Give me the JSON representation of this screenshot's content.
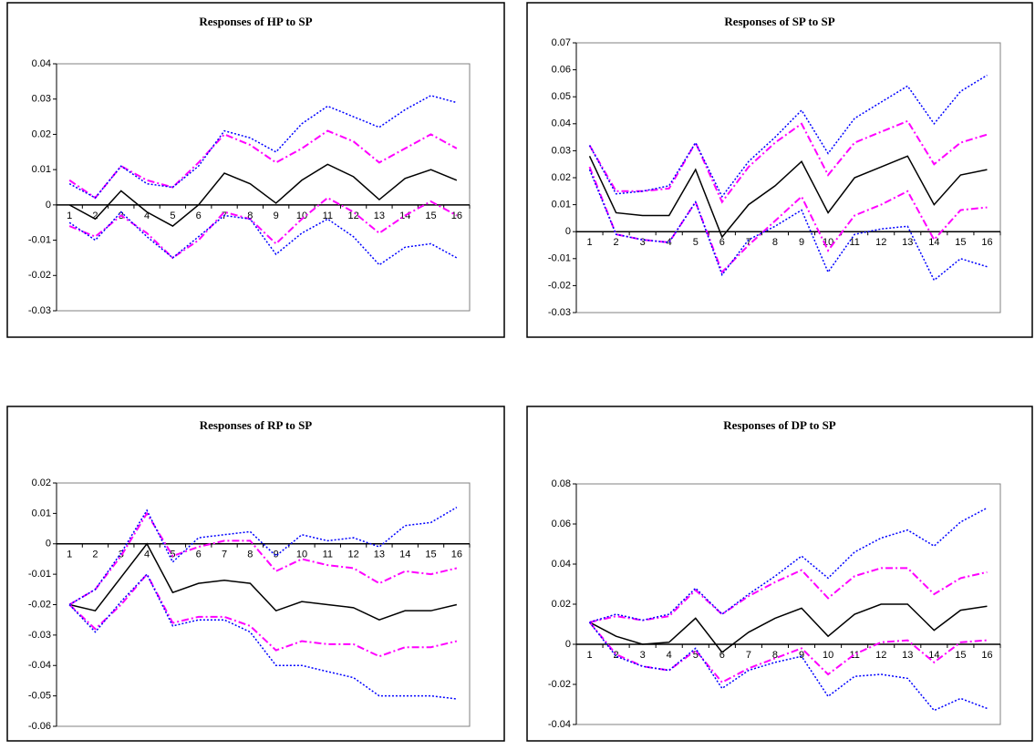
{
  "chart_data": [
    {
      "type": "line",
      "title": "Responses of HP to SP",
      "categories": [
        "1",
        "2",
        "3",
        "4",
        "5",
        "6",
        "7",
        "8",
        "9",
        "10",
        "11",
        "12",
        "13",
        "14",
        "15",
        "16"
      ],
      "ylim": [
        -0.03,
        0.04
      ],
      "yticks": [
        -0.03,
        -0.02,
        -0.01,
        0,
        0.01,
        0.02,
        0.03,
        0.04
      ],
      "series": [
        {
          "color": "#000000",
          "style": "solid",
          "values": [
            0,
            -0.004,
            0.004,
            -0.002,
            -0.006,
            0,
            0.009,
            0.006,
            0.0005,
            0.007,
            0.0115,
            0.008,
            0.0015,
            0.0075,
            0.01,
            0.007
          ]
        },
        {
          "color": "#ff00ff",
          "style": "dashdot",
          "values": [
            0.007,
            0.002,
            0.011,
            0.007,
            0.005,
            0.012,
            0.02,
            0.017,
            0.012,
            0.016,
            0.021,
            0.018,
            0.012,
            0.016,
            0.02,
            0.016
          ]
        },
        {
          "color": "#0000ff",
          "style": "dotted",
          "values": [
            0.006,
            0.002,
            0.011,
            0.006,
            0.005,
            0.011,
            0.021,
            0.019,
            0.015,
            0.023,
            0.028,
            0.025,
            0.022,
            0.027,
            0.031,
            0.029
          ]
        },
        {
          "color": "#ff00ff",
          "style": "dashdot",
          "values": [
            -0.006,
            -0.009,
            -0.003,
            -0.008,
            -0.015,
            -0.01,
            -0.002,
            -0.004,
            -0.011,
            -0.004,
            0.002,
            -0.002,
            -0.008,
            -0.003,
            0.001,
            -0.003
          ]
        },
        {
          "color": "#0000ff",
          "style": "dotted",
          "values": [
            -0.005,
            -0.01,
            -0.002,
            -0.009,
            -0.015,
            -0.009,
            -0.003,
            -0.004,
            -0.014,
            -0.008,
            -0.004,
            -0.009,
            -0.017,
            -0.012,
            -0.011,
            -0.015
          ]
        }
      ]
    },
    {
      "type": "line",
      "title": "Responses of SP to SP",
      "categories": [
        "1",
        "2",
        "3",
        "4",
        "5",
        "6",
        "7",
        "8",
        "9",
        "10",
        "11",
        "12",
        "13",
        "14",
        "15",
        "16"
      ],
      "ylim": [
        -0.03,
        0.07
      ],
      "yticks": [
        -0.03,
        -0.02,
        -0.01,
        0,
        0.01,
        0.02,
        0.03,
        0.04,
        0.05,
        0.06,
        0.07
      ],
      "series": [
        {
          "color": "#000000",
          "style": "solid",
          "values": [
            0.028,
            0.007,
            0.006,
            0.006,
            0.023,
            -0.002,
            0.01,
            0.017,
            0.026,
            0.007,
            0.02,
            0.024,
            0.028,
            0.01,
            0.021,
            0.023
          ]
        },
        {
          "color": "#ff00ff",
          "style": "dashdot",
          "values": [
            0.032,
            0.015,
            0.015,
            0.016,
            0.033,
            0.011,
            0.024,
            0.033,
            0.04,
            0.021,
            0.033,
            0.037,
            0.041,
            0.025,
            0.033,
            0.036
          ]
        },
        {
          "color": "#0000ff",
          "style": "dotted",
          "values": [
            0.032,
            0.014,
            0.015,
            0.017,
            0.033,
            0.013,
            0.026,
            0.035,
            0.045,
            0.029,
            0.042,
            0.048,
            0.054,
            0.04,
            0.052,
            0.058
          ]
        },
        {
          "color": "#ff00ff",
          "style": "dashdot",
          "values": [
            0.024,
            -0.001,
            -0.003,
            -0.004,
            0.011,
            -0.015,
            -0.005,
            0.004,
            0.013,
            -0.007,
            0.006,
            0.01,
            0.015,
            -0.003,
            0.008,
            0.009
          ]
        },
        {
          "color": "#0000ff",
          "style": "dotted",
          "values": [
            0.023,
            -0.001,
            -0.003,
            -0.004,
            0.011,
            -0.016,
            -0.003,
            0.002,
            0.008,
            -0.015,
            -0.001,
            0.001,
            0.002,
            -0.018,
            -0.01,
            -0.013
          ]
        }
      ]
    },
    {
      "type": "line",
      "title": "Responses of RP to SP",
      "categories": [
        "1",
        "2",
        "3",
        "4",
        "5",
        "6",
        "7",
        "8",
        "9",
        "10",
        "11",
        "12",
        "13",
        "14",
        "15",
        "16"
      ],
      "ylim": [
        -0.06,
        0.02
      ],
      "yticks": [
        -0.06,
        -0.05,
        -0.04,
        -0.03,
        -0.02,
        -0.01,
        0,
        0.01,
        0.02
      ],
      "series": [
        {
          "color": "#000000",
          "style": "solid",
          "values": [
            -0.02,
            -0.022,
            -0.011,
            0,
            -0.016,
            -0.013,
            -0.012,
            -0.013,
            -0.022,
            -0.019,
            -0.02,
            -0.021,
            -0.025,
            -0.022,
            -0.022,
            -0.02
          ]
        },
        {
          "color": "#ff00ff",
          "style": "dashdot",
          "values": [
            -0.02,
            -0.015,
            -0.004,
            0.01,
            -0.004,
            -0.001,
            0.001,
            0.001,
            -0.009,
            -0.005,
            -0.007,
            -0.008,
            -0.013,
            -0.009,
            -0.01,
            -0.008
          ]
        },
        {
          "color": "#0000ff",
          "style": "dotted",
          "values": [
            -0.02,
            -0.015,
            -0.003,
            0.011,
            -0.006,
            0.002,
            0.003,
            0.004,
            -0.004,
            0.003,
            0.001,
            0.002,
            -0.001,
            0.006,
            0.007,
            0.012
          ]
        },
        {
          "color": "#ff00ff",
          "style": "dashdot",
          "values": [
            -0.02,
            -0.028,
            -0.02,
            -0.01,
            -0.026,
            -0.024,
            -0.024,
            -0.027,
            -0.035,
            -0.032,
            -0.033,
            -0.033,
            -0.037,
            -0.034,
            -0.034,
            -0.032
          ]
        },
        {
          "color": "#0000ff",
          "style": "dotted",
          "values": [
            -0.02,
            -0.029,
            -0.019,
            -0.01,
            -0.027,
            -0.025,
            -0.025,
            -0.029,
            -0.04,
            -0.04,
            -0.042,
            -0.044,
            -0.05,
            -0.05,
            -0.05,
            -0.051
          ]
        }
      ]
    },
    {
      "type": "line",
      "title": "Responses of DP to SP",
      "categories": [
        "1",
        "2",
        "3",
        "4",
        "5",
        "6",
        "7",
        "8",
        "9",
        "10",
        "11",
        "12",
        "13",
        "14",
        "15",
        "16"
      ],
      "ylim": [
        -0.04,
        0.08
      ],
      "yticks": [
        -0.04,
        -0.02,
        0,
        0.02,
        0.04,
        0.06,
        0.08
      ],
      "series": [
        {
          "color": "#000000",
          "style": "solid",
          "values": [
            0.011,
            0.004,
            0,
            0.001,
            0.013,
            -0.004,
            0.006,
            0.013,
            0.018,
            0.004,
            0.015,
            0.02,
            0.02,
            0.007,
            0.017,
            0.019
          ]
        },
        {
          "color": "#ff00ff",
          "style": "dashdot",
          "values": [
            0.011,
            0.014,
            0.012,
            0.014,
            0.027,
            0.015,
            0.024,
            0.031,
            0.037,
            0.023,
            0.034,
            0.038,
            0.038,
            0.025,
            0.033,
            0.036
          ]
        },
        {
          "color": "#0000ff",
          "style": "dotted",
          "values": [
            0.011,
            0.015,
            0.012,
            0.015,
            0.028,
            0.015,
            0.025,
            0.034,
            0.044,
            0.033,
            0.046,
            0.053,
            0.057,
            0.049,
            0.061,
            0.068
          ]
        },
        {
          "color": "#ff00ff",
          "style": "dashdot",
          "values": [
            0.011,
            -0.005,
            -0.011,
            -0.013,
            -0.003,
            -0.019,
            -0.012,
            -0.007,
            -0.002,
            -0.015,
            -0.005,
            0.001,
            0.002,
            -0.009,
            0.001,
            0.002
          ]
        },
        {
          "color": "#0000ff",
          "style": "dotted",
          "values": [
            0.011,
            -0.006,
            -0.011,
            -0.013,
            -0.002,
            -0.022,
            -0.013,
            -0.009,
            -0.006,
            -0.026,
            -0.016,
            -0.015,
            -0.017,
            -0.033,
            -0.027,
            -0.032
          ]
        }
      ]
    }
  ]
}
